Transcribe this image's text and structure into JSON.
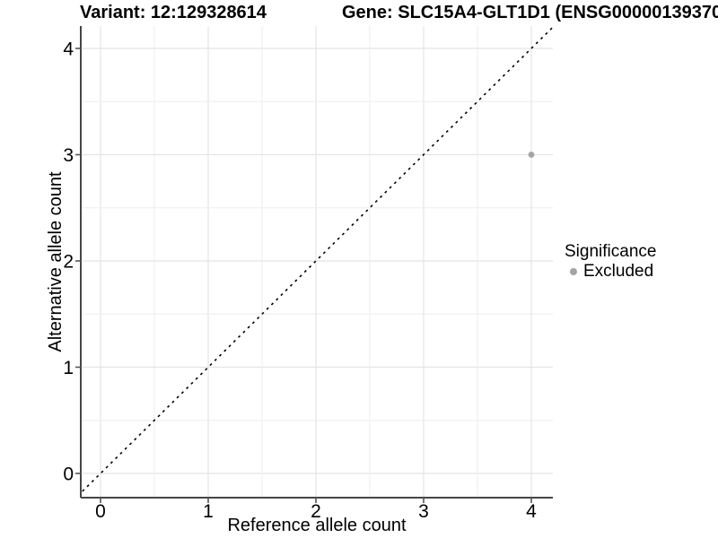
{
  "chart_data": {
    "type": "scatter",
    "titles": {
      "left": "Variant: 12:129328614",
      "right": "Gene: SLC15A4-GLT1D1 (ENSG00000139370"
    },
    "xlabel": "Reference allele count",
    "ylabel": "Alternative allele count",
    "xticks": [
      0,
      1,
      2,
      3,
      4
    ],
    "yticks": [
      0,
      1,
      2,
      3,
      4
    ],
    "xlim": [
      -0.2,
      4.2
    ],
    "ylim": [
      -0.2,
      4.2
    ],
    "grid": {
      "major_every": 1,
      "minor_every": 0.5,
      "shown": true
    },
    "points": [
      {
        "x": 4,
        "y": 3,
        "significance": "Excluded",
        "color": "#a4a4a4"
      }
    ],
    "identity_line": {
      "equation": "y = x",
      "style": "dashed",
      "color": "#000000"
    },
    "legend": {
      "title": "Significance",
      "position": "right",
      "items": [
        {
          "label": "Excluded",
          "color": "#a4a4a4"
        }
      ]
    }
  },
  "style": {
    "background": "#ffffff",
    "axis_color": "#464646",
    "tick_color": "#555555",
    "grid_major": "#e4e4e4",
    "grid_minor": "#f0f0f0",
    "text_color": "#000000"
  }
}
